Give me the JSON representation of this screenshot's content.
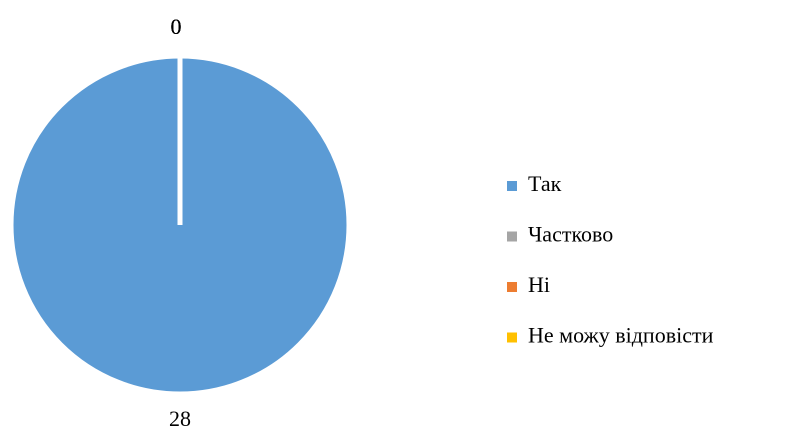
{
  "chart_data": {
    "type": "pie",
    "categories": [
      "Так",
      "Частково",
      "Ні",
      "Не можу відповісти"
    ],
    "values": [
      28,
      0,
      0,
      0
    ],
    "colors": [
      "#5b9bd5",
      "#a5a5a5",
      "#ed7d31",
      "#ffc000"
    ],
    "legend": "right"
  }
}
